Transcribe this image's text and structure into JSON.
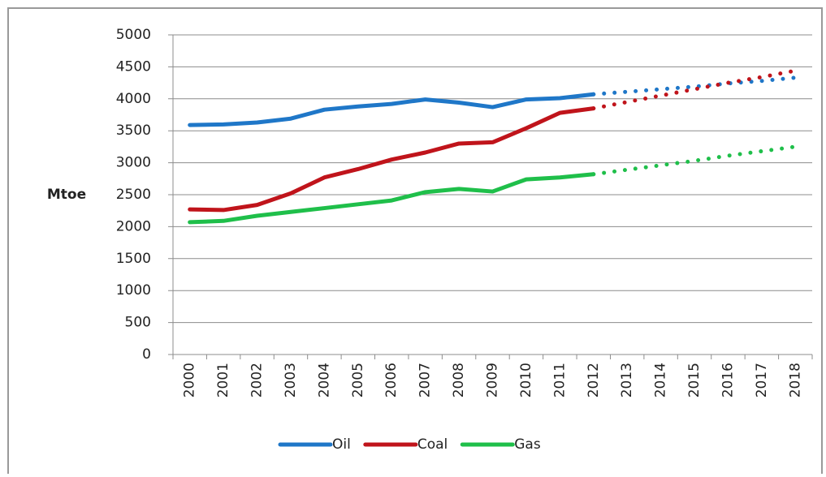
{
  "chart_data": {
    "type": "line",
    "y_label": "Mtoe",
    "categories": [
      "2000",
      "2001",
      "2002",
      "2003",
      "2004",
      "2005",
      "2006",
      "2007",
      "2008",
      "2009",
      "2010",
      "2011",
      "2012",
      "2013",
      "2014",
      "2015",
      "2016",
      "2017",
      "2018"
    ],
    "dotted_from": "2012",
    "series": [
      {
        "name": "Oil",
        "color": "#1f77c8",
        "values": [
          3590,
          3600,
          3630,
          3690,
          3830,
          3880,
          3920,
          3990,
          3940,
          3870,
          3990,
          4010,
          4070,
          4110,
          4150,
          4190,
          4240,
          4280,
          4330
        ]
      },
      {
        "name": "Coal",
        "color": "#c0141b",
        "values": [
          2270,
          2260,
          2340,
          2520,
          2770,
          2900,
          3050,
          3160,
          3300,
          3320,
          3540,
          3780,
          3850,
          3950,
          4050,
          4150,
          4250,
          4340,
          4440
        ]
      },
      {
        "name": "Gas",
        "color": "#1fbf4a",
        "values": [
          2070,
          2090,
          2170,
          2230,
          2290,
          2350,
          2410,
          2540,
          2590,
          2550,
          2740,
          2770,
          2820,
          2890,
          2960,
          3030,
          3110,
          3180,
          3250
        ]
      }
    ],
    "ylim": [
      0,
      5000
    ],
    "yticks": [
      0,
      500,
      1000,
      1500,
      2000,
      2500,
      3000,
      3500,
      4000,
      4500,
      5000
    ],
    "grid": true,
    "legend": "bottom"
  }
}
